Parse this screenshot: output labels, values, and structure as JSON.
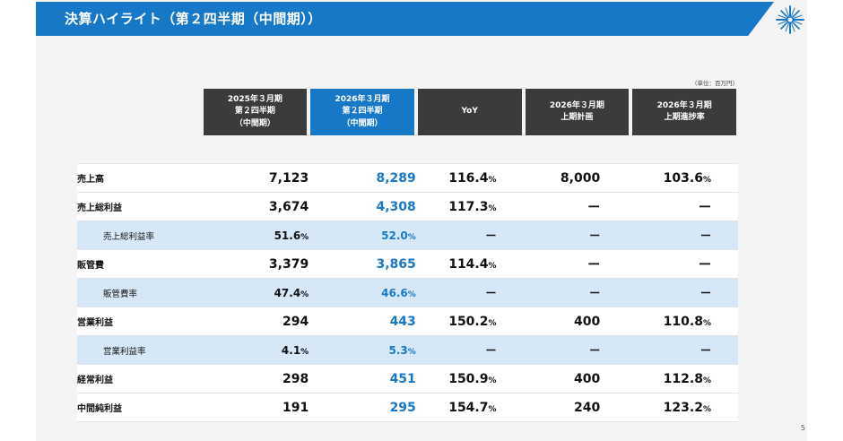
{
  "header": {
    "title": "決算ハイライト（第２四半期（中間期））"
  },
  "logo": {
    "icon": "star-burst-logo-icon",
    "color": "#1878c8"
  },
  "unit_note": "（単位：百万円）",
  "page_number": "5",
  "colors": {
    "accent": "#1878c8",
    "dark_header": "#3b3b3b",
    "sub_row": "#d6e8f7"
  },
  "table": {
    "columns": [
      {
        "lines": [
          "2025年３月期",
          "第２四半期",
          "（中間期）"
        ]
      },
      {
        "lines": [
          "2026年３月期",
          "第２四半期",
          "（中間期）"
        ]
      },
      {
        "lines": [
          "YoY"
        ]
      },
      {
        "lines": [
          "2026年３月期",
          "上期計画"
        ]
      },
      {
        "lines": [
          "2026年３月期",
          "上期進捗率"
        ]
      }
    ],
    "rows": [
      {
        "label": "売上高",
        "sub": false,
        "cells": [
          {
            "v": "7,123",
            "u": ""
          },
          {
            "v": "8,289",
            "u": ""
          },
          {
            "v": "116.4",
            "u": "%"
          },
          {
            "v": "8,000",
            "u": ""
          },
          {
            "v": "103.6",
            "u": "%"
          }
        ]
      },
      {
        "label": "売上総利益",
        "sub": false,
        "cells": [
          {
            "v": "3,674",
            "u": ""
          },
          {
            "v": "4,308",
            "u": ""
          },
          {
            "v": "117.3",
            "u": "%"
          },
          {
            "v": "ー",
            "u": ""
          },
          {
            "v": "ー",
            "u": ""
          }
        ]
      },
      {
        "label": "売上総利益率",
        "sub": true,
        "cells": [
          {
            "v": "51.6",
            "u": "%"
          },
          {
            "v": "52.0",
            "u": "%"
          },
          {
            "v": "ー",
            "u": ""
          },
          {
            "v": "ー",
            "u": ""
          },
          {
            "v": "ー",
            "u": ""
          }
        ]
      },
      {
        "label": "販管費",
        "sub": false,
        "cells": [
          {
            "v": "3,379",
            "u": ""
          },
          {
            "v": "3,865",
            "u": ""
          },
          {
            "v": "114.4",
            "u": "%"
          },
          {
            "v": "ー",
            "u": ""
          },
          {
            "v": "ー",
            "u": ""
          }
        ]
      },
      {
        "label": "販管費率",
        "sub": true,
        "cells": [
          {
            "v": "47.4",
            "u": "%"
          },
          {
            "v": "46.6",
            "u": "%"
          },
          {
            "v": "ー",
            "u": ""
          },
          {
            "v": "ー",
            "u": ""
          },
          {
            "v": "ー",
            "u": ""
          }
        ]
      },
      {
        "label": "営業利益",
        "sub": false,
        "cells": [
          {
            "v": "294",
            "u": ""
          },
          {
            "v": "443",
            "u": ""
          },
          {
            "v": "150.2",
            "u": "%"
          },
          {
            "v": "400",
            "u": ""
          },
          {
            "v": "110.8",
            "u": "%"
          }
        ]
      },
      {
        "label": "営業利益率",
        "sub": true,
        "cells": [
          {
            "v": "4.1",
            "u": "%"
          },
          {
            "v": "5.3",
            "u": "%"
          },
          {
            "v": "ー",
            "u": ""
          },
          {
            "v": "ー",
            "u": ""
          },
          {
            "v": "ー",
            "u": ""
          }
        ]
      },
      {
        "label": "経常利益",
        "sub": false,
        "cells": [
          {
            "v": "298",
            "u": ""
          },
          {
            "v": "451",
            "u": ""
          },
          {
            "v": "150.9",
            "u": "%"
          },
          {
            "v": "400",
            "u": ""
          },
          {
            "v": "112.8",
            "u": "%"
          }
        ]
      },
      {
        "label": "中間純利益",
        "sub": false,
        "cells": [
          {
            "v": "191",
            "u": ""
          },
          {
            "v": "295",
            "u": ""
          },
          {
            "v": "154.7",
            "u": "%"
          },
          {
            "v": "240",
            "u": ""
          },
          {
            "v": "123.2",
            "u": "%"
          }
        ]
      }
    ]
  }
}
